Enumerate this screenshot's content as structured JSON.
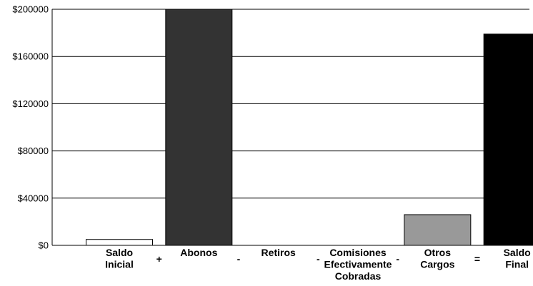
{
  "chart_data": {
    "type": "bar",
    "title": "",
    "xlabel": "",
    "ylabel": "",
    "ylim": [
      0,
      200000
    ],
    "yticks": [
      0,
      40000,
      80000,
      120000,
      160000,
      200000
    ],
    "ytick_labels": [
      "$0",
      "$40000",
      "$80000",
      "$120000",
      "$160000",
      "$200000"
    ],
    "grid": "horizontal",
    "legend": "none",
    "categories": [
      [
        "Saldo",
        "Inicial"
      ],
      [
        "Abonos"
      ],
      [
        "Retiros"
      ],
      [
        "Comisiones",
        "Efectivamente",
        "Cobradas"
      ],
      [
        "Otros",
        "Cargos"
      ],
      [
        "Saldo",
        "Final"
      ]
    ],
    "operators": [
      "+",
      "-",
      "-",
      "-",
      "="
    ],
    "values": [
      5000,
      200000,
      0,
      0,
      26000,
      179000
    ],
    "colors": [
      "#ffffff",
      "#333333",
      "#ffffff",
      "#ffffff",
      "#999999",
      "#000000"
    ]
  }
}
